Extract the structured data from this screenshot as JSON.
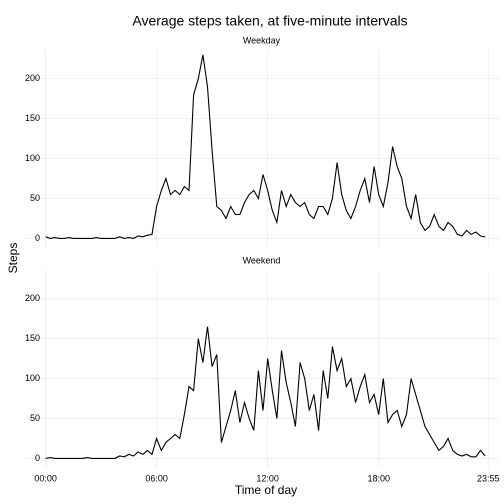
{
  "chart_data": {
    "type": "line",
    "title": "Average steps taken, at five-minute intervals",
    "x_label": "Time of day",
    "y_label": "Steps",
    "color": "#000000",
    "grid": true,
    "x": [
      0,
      15,
      30,
      45,
      60,
      75,
      90,
      105,
      120,
      135,
      150,
      165,
      180,
      195,
      210,
      225,
      240,
      255,
      270,
      285,
      300,
      315,
      330,
      345,
      360,
      375,
      390,
      405,
      420,
      435,
      450,
      465,
      480,
      495,
      510,
      525,
      540,
      555,
      570,
      585,
      600,
      615,
      630,
      645,
      660,
      675,
      690,
      705,
      720,
      735,
      750,
      765,
      780,
      795,
      810,
      825,
      840,
      855,
      870,
      885,
      900,
      915,
      930,
      945,
      960,
      975,
      990,
      1005,
      1020,
      1035,
      1050,
      1065,
      1080,
      1095,
      1110,
      1125,
      1140,
      1155,
      1170,
      1185,
      1200,
      1215,
      1230,
      1245,
      1260,
      1275,
      1290,
      1305,
      1320,
      1335,
      1350,
      1365,
      1380,
      1395,
      1410,
      1425
    ],
    "xlim": [
      -70,
      1470
    ],
    "xticks": [
      {
        "value": 0,
        "label": "00:00"
      },
      {
        "value": 360,
        "label": "06:00"
      },
      {
        "value": 720,
        "label": "12:00"
      },
      {
        "value": 1080,
        "label": "18:00"
      },
      {
        "value": 1435,
        "label": "23:55"
      }
    ],
    "ylim": [
      -12,
      236
    ],
    "yticks": [
      0,
      50,
      100,
      150,
      200
    ],
    "facets": [
      {
        "name": "Weekday",
        "values": [
          2,
          0,
          1,
          0,
          0,
          1,
          0,
          0,
          0,
          0,
          0,
          1,
          0,
          0,
          0,
          0,
          2,
          0,
          1,
          0,
          3,
          2,
          4,
          5,
          40,
          60,
          75,
          55,
          60,
          55,
          65,
          60,
          180,
          200,
          230,
          190,
          110,
          40,
          35,
          25,
          40,
          30,
          30,
          45,
          55,
          60,
          50,
          80,
          60,
          35,
          20,
          60,
          40,
          55,
          45,
          40,
          45,
          30,
          25,
          40,
          40,
          30,
          50,
          95,
          55,
          35,
          25,
          40,
          60,
          75,
          45,
          90,
          55,
          40,
          70,
          115,
          90,
          75,
          40,
          25,
          55,
          20,
          10,
          15,
          30,
          15,
          10,
          20,
          15,
          5,
          3,
          10,
          5,
          8,
          3,
          2
        ]
      },
      {
        "name": "Weekend",
        "values": [
          0,
          1,
          0,
          0,
          0,
          0,
          0,
          0,
          0,
          1,
          0,
          0,
          0,
          0,
          0,
          0,
          3,
          2,
          5,
          3,
          8,
          5,
          10,
          5,
          25,
          10,
          20,
          25,
          30,
          25,
          55,
          90,
          85,
          150,
          120,
          165,
          115,
          130,
          20,
          40,
          60,
          85,
          45,
          70,
          50,
          35,
          110,
          60,
          125,
          85,
          50,
          135,
          95,
          70,
          40,
          120,
          100,
          60,
          80,
          35,
          110,
          75,
          140,
          110,
          125,
          90,
          100,
          70,
          90,
          105,
          70,
          80,
          55,
          100,
          45,
          55,
          60,
          40,
          55,
          100,
          80,
          60,
          40,
          30,
          20,
          10,
          15,
          25,
          10,
          5,
          3,
          5,
          2,
          2,
          10,
          3
        ]
      }
    ]
  }
}
